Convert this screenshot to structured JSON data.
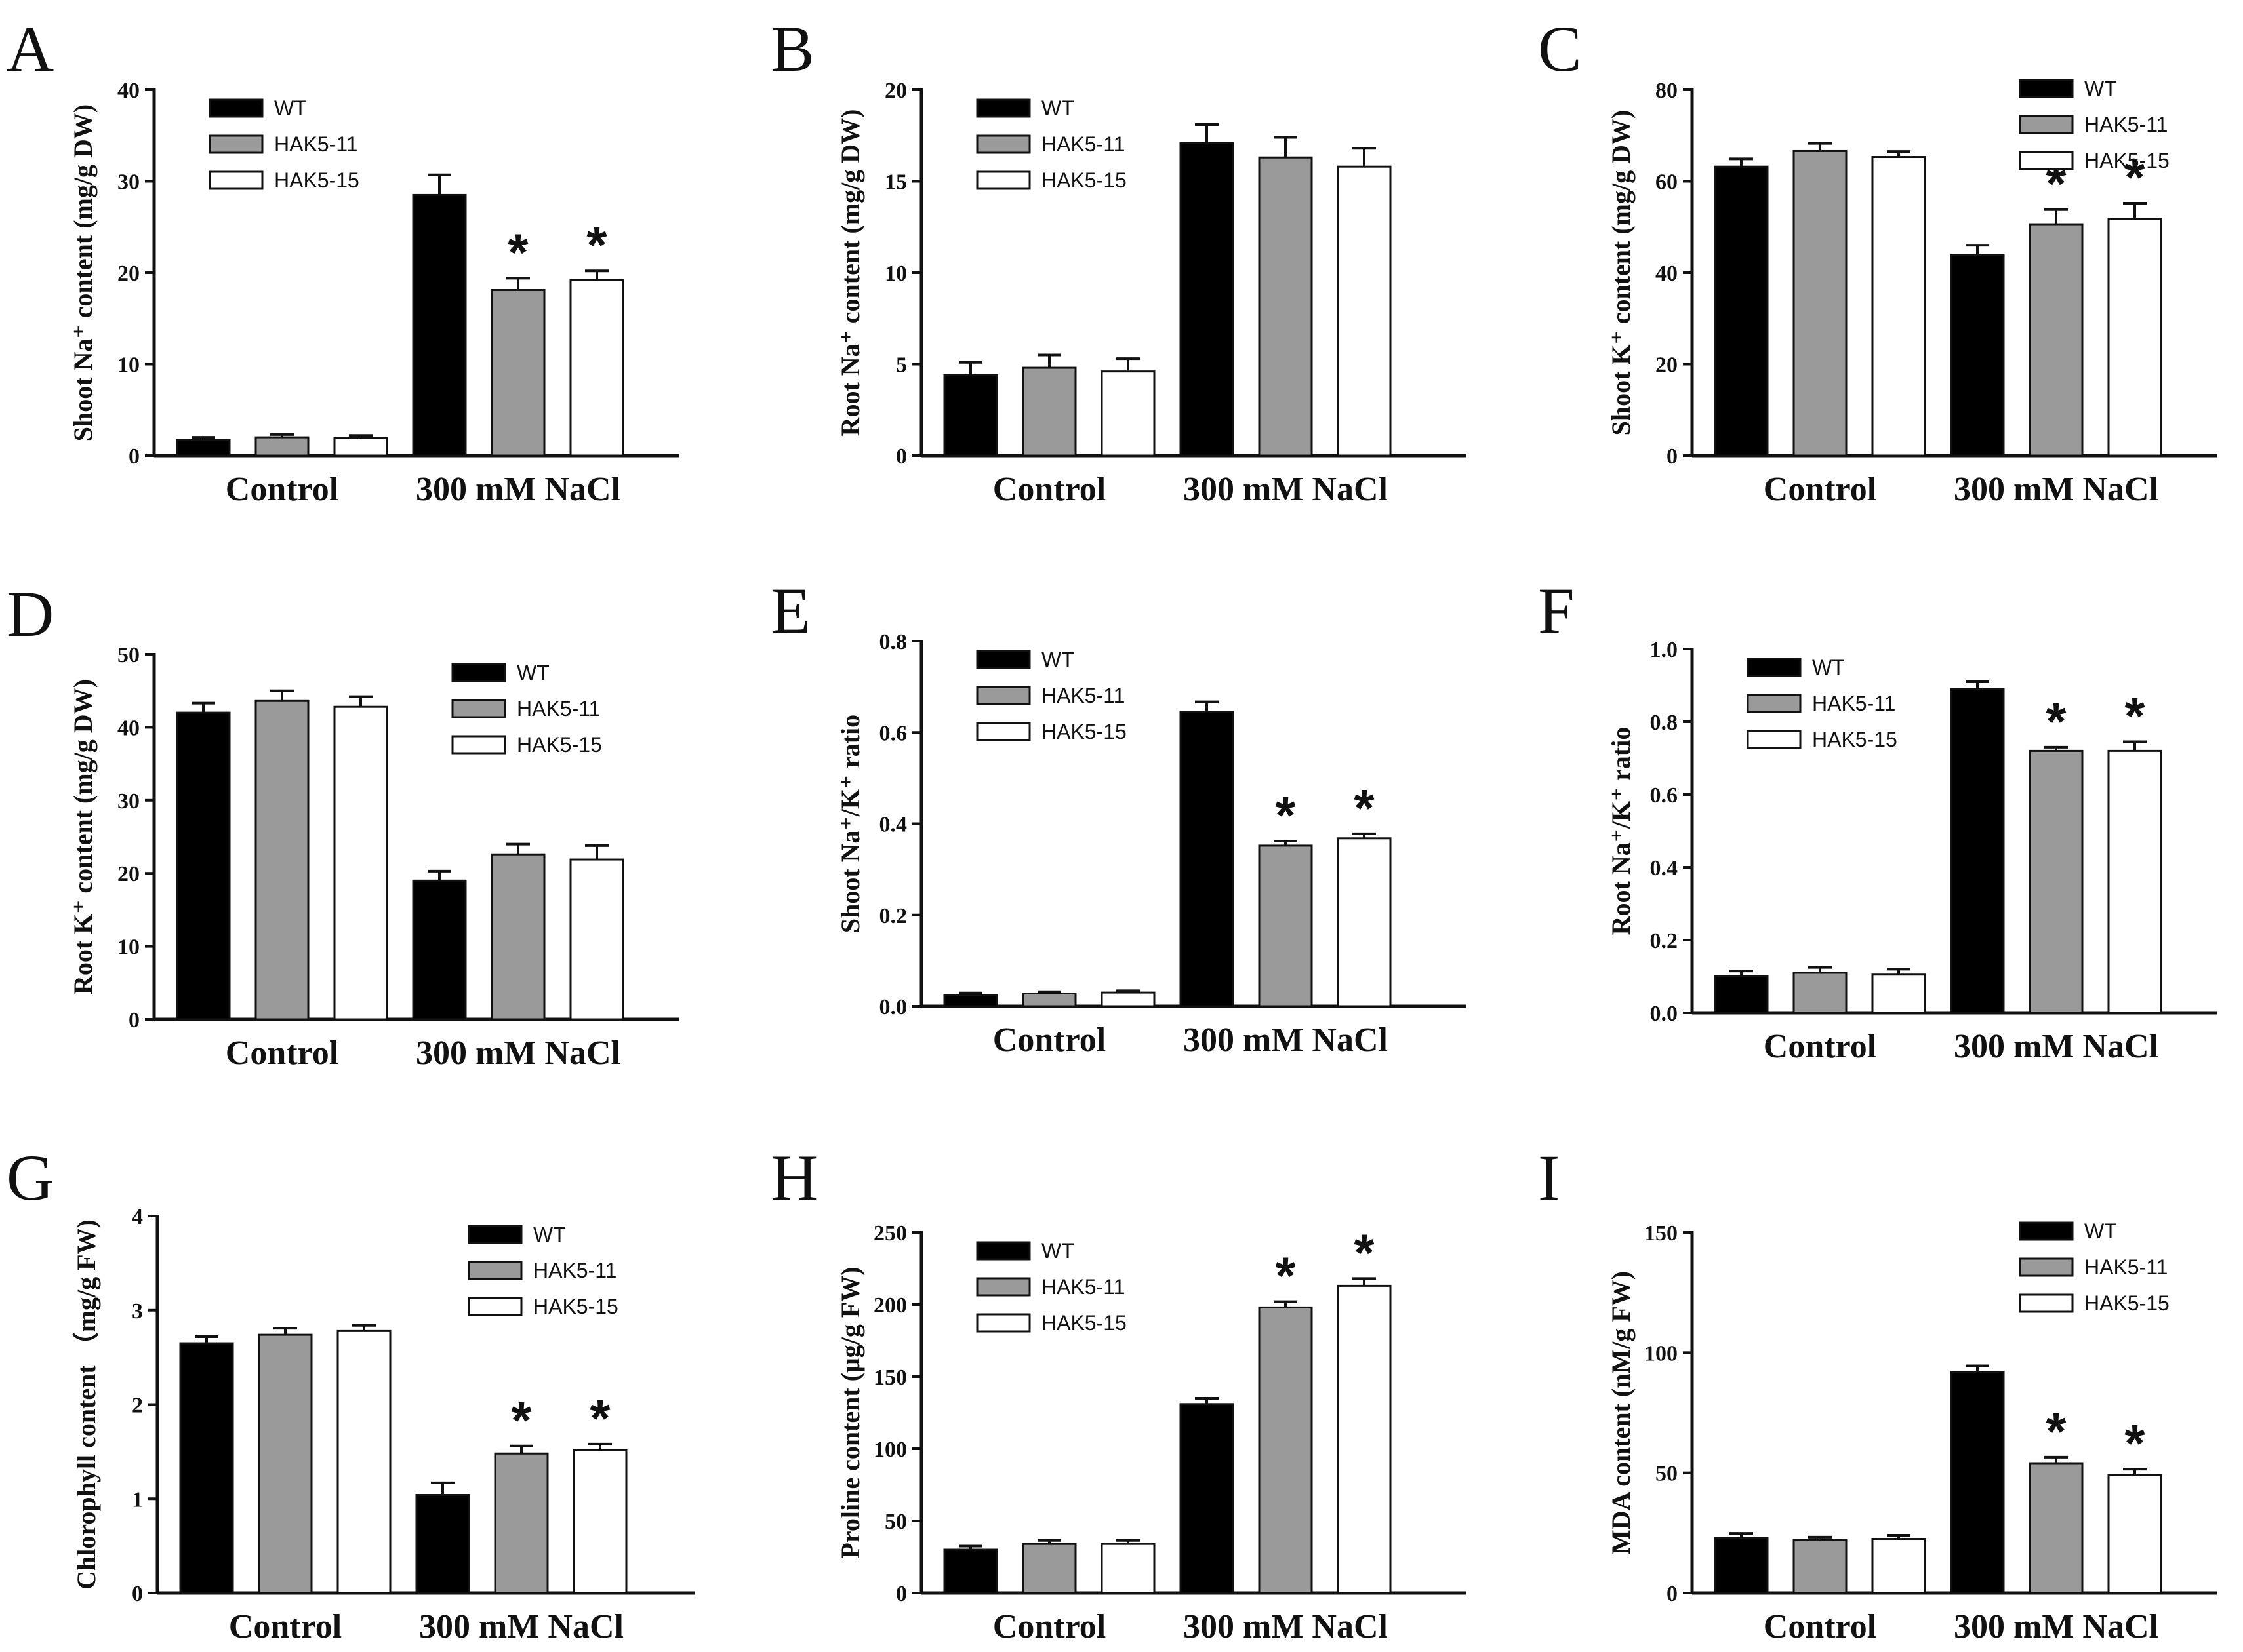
{
  "figure": {
    "series_names": [
      "WT",
      "HAK5-11",
      "HAK5-15"
    ],
    "colors": {
      "WT": "#000000",
      "HAK5-11": "#9a9a9a",
      "HAK5-15": "#ffffff",
      "axis": "#111111"
    },
    "significance_marker": "*"
  },
  "chart_data": [
    {
      "panel": "A",
      "type": "bar",
      "ylabel": "Shoot Na⁺ content (mg/g DW)",
      "categories": [
        "Control",
        "300 mM NaCl"
      ],
      "ylim": [
        0,
        40
      ],
      "yticks": [
        0,
        10,
        20,
        30,
        40
      ],
      "legend": "top-left",
      "series": [
        {
          "name": "WT",
          "values": [
            1.7,
            28.5
          ],
          "errors": [
            0.3,
            2.2
          ],
          "significant": [
            false,
            false
          ]
        },
        {
          "name": "HAK5-11",
          "values": [
            2.0,
            18.1
          ],
          "errors": [
            0.3,
            1.3
          ],
          "significant": [
            false,
            true
          ]
        },
        {
          "name": "HAK5-15",
          "values": [
            1.9,
            19.2
          ],
          "errors": [
            0.3,
            1.0
          ],
          "significant": [
            false,
            true
          ]
        }
      ]
    },
    {
      "panel": "B",
      "type": "bar",
      "ylabel": "Root Na⁺ content (mg/g DW)",
      "categories": [
        "Control",
        "300 mM NaCl"
      ],
      "ylim": [
        0,
        20
      ],
      "yticks": [
        0,
        5,
        10,
        15,
        20
      ],
      "legend": "top-left",
      "series": [
        {
          "name": "WT",
          "values": [
            4.4,
            17.1
          ],
          "errors": [
            0.7,
            1.0
          ],
          "significant": [
            false,
            false
          ]
        },
        {
          "name": "HAK5-11",
          "values": [
            4.8,
            16.3
          ],
          "errors": [
            0.7,
            1.1
          ],
          "significant": [
            false,
            false
          ]
        },
        {
          "name": "HAK5-15",
          "values": [
            4.6,
            15.8
          ],
          "errors": [
            0.7,
            1.0
          ],
          "significant": [
            false,
            false
          ]
        }
      ]
    },
    {
      "panel": "C",
      "type": "bar",
      "ylabel": "Shoot K⁺ content (mg/g DW)",
      "categories": [
        "Control",
        "300 mM NaCl"
      ],
      "ylim": [
        0,
        80
      ],
      "yticks": [
        0,
        20,
        40,
        60,
        80
      ],
      "legend": "top-right",
      "series": [
        {
          "name": "WT",
          "values": [
            63.2,
            43.8
          ],
          "errors": [
            1.7,
            2.2
          ],
          "significant": [
            false,
            false
          ]
        },
        {
          "name": "HAK5-11",
          "values": [
            66.6,
            50.6
          ],
          "errors": [
            1.7,
            3.2
          ],
          "significant": [
            false,
            true
          ]
        },
        {
          "name": "HAK5-15",
          "values": [
            65.3,
            51.8
          ],
          "errors": [
            1.2,
            3.4
          ],
          "significant": [
            false,
            true
          ]
        }
      ]
    },
    {
      "panel": "D",
      "type": "bar",
      "ylabel": "Root K⁺ content (mg/g DW)",
      "categories": [
        "Control",
        "300 mM NaCl"
      ],
      "ylim": [
        0,
        50
      ],
      "yticks": [
        0,
        10,
        20,
        30,
        40,
        50
      ],
      "legend": "right",
      "series": [
        {
          "name": "WT",
          "values": [
            42.0,
            19.0
          ],
          "errors": [
            1.3,
            1.3
          ],
          "significant": [
            false,
            false
          ]
        },
        {
          "name": "HAK5-11",
          "values": [
            43.6,
            22.6
          ],
          "errors": [
            1.4,
            1.4
          ],
          "significant": [
            false,
            false
          ]
        },
        {
          "name": "HAK5-15",
          "values": [
            42.8,
            21.9
          ],
          "errors": [
            1.4,
            1.9
          ],
          "significant": [
            false,
            false
          ]
        }
      ]
    },
    {
      "panel": "E",
      "type": "bar",
      "ylabel": "Shoot Na⁺/K⁺ ratio",
      "categories": [
        "Control",
        "300 mM NaCl"
      ],
      "ylim": [
        0,
        0.8
      ],
      "yticks": [
        0.0,
        0.2,
        0.4,
        0.6,
        0.8
      ],
      "legend": "top-left",
      "series": [
        {
          "name": "WT",
          "values": [
            0.025,
            0.645
          ],
          "errors": [
            0.004,
            0.022
          ],
          "significant": [
            false,
            false
          ]
        },
        {
          "name": "HAK5-11",
          "values": [
            0.028,
            0.352
          ],
          "errors": [
            0.004,
            0.01
          ],
          "significant": [
            false,
            true
          ]
        },
        {
          "name": "HAK5-15",
          "values": [
            0.03,
            0.368
          ],
          "errors": [
            0.004,
            0.01
          ],
          "significant": [
            false,
            true
          ]
        }
      ]
    },
    {
      "panel": "F",
      "type": "bar",
      "ylabel": "Root Na⁺/K⁺ ratio",
      "categories": [
        "Control",
        "300 mM NaCl"
      ],
      "ylim": [
        0,
        1.0
      ],
      "yticks": [
        0.0,
        0.2,
        0.4,
        0.6,
        0.8,
        1.0
      ],
      "legend": "top-left",
      "series": [
        {
          "name": "WT",
          "values": [
            0.1,
            0.89
          ],
          "errors": [
            0.015,
            0.02
          ],
          "significant": [
            false,
            false
          ]
        },
        {
          "name": "HAK5-11",
          "values": [
            0.11,
            0.72
          ],
          "errors": [
            0.015,
            0.01
          ],
          "significant": [
            false,
            true
          ]
        },
        {
          "name": "HAK5-15",
          "values": [
            0.105,
            0.72
          ],
          "errors": [
            0.015,
            0.025
          ],
          "significant": [
            false,
            true
          ]
        }
      ]
    },
    {
      "panel": "G",
      "type": "bar",
      "ylabel": "Chlorophyll content （mg/g FW)",
      "categories": [
        "Control",
        "300 mM NaCl"
      ],
      "ylim": [
        0,
        4
      ],
      "yticks": [
        0,
        1,
        2,
        3,
        4
      ],
      "legend": "right",
      "series": [
        {
          "name": "WT",
          "values": [
            2.65,
            1.04
          ],
          "errors": [
            0.07,
            0.13
          ],
          "significant": [
            false,
            false
          ]
        },
        {
          "name": "HAK5-11",
          "values": [
            2.74,
            1.48
          ],
          "errors": [
            0.07,
            0.08
          ],
          "significant": [
            false,
            true
          ]
        },
        {
          "name": "HAK5-15",
          "values": [
            2.78,
            1.52
          ],
          "errors": [
            0.06,
            0.06
          ],
          "significant": [
            false,
            true
          ]
        }
      ]
    },
    {
      "panel": "H",
      "type": "bar",
      "ylabel": "Proline content (μg/g FW)",
      "categories": [
        "Control",
        "300 mM NaCl"
      ],
      "ylim": [
        0,
        250
      ],
      "yticks": [
        0,
        50,
        100,
        150,
        200,
        250
      ],
      "legend": "top-left",
      "series": [
        {
          "name": "WT",
          "values": [
            30,
            131
          ],
          "errors": [
            2.5,
            4
          ],
          "significant": [
            false,
            false
          ]
        },
        {
          "name": "HAK5-11",
          "values": [
            34,
            198
          ],
          "errors": [
            2.5,
            4
          ],
          "significant": [
            false,
            true
          ]
        },
        {
          "name": "HAK5-15",
          "values": [
            34,
            213
          ],
          "errors": [
            2.5,
            5
          ],
          "significant": [
            false,
            true
          ]
        }
      ]
    },
    {
      "panel": "I",
      "type": "bar",
      "ylabel": "MDA content (nM/g FW)",
      "categories": [
        "Control",
        "300 mM NaCl"
      ],
      "ylim": [
        0,
        150
      ],
      "yticks": [
        0,
        50,
        100,
        150
      ],
      "legend": "top-right",
      "series": [
        {
          "name": "WT",
          "values": [
            23,
            92
          ],
          "errors": [
            1.8,
            2.5
          ],
          "significant": [
            false,
            false
          ]
        },
        {
          "name": "HAK5-11",
          "values": [
            22,
            54
          ],
          "errors": [
            1.2,
            2.5
          ],
          "significant": [
            false,
            true
          ]
        },
        {
          "name": "HAK5-15",
          "values": [
            22.5,
            49
          ],
          "errors": [
            1.5,
            2.5
          ],
          "significant": [
            false,
            true
          ]
        }
      ]
    }
  ]
}
